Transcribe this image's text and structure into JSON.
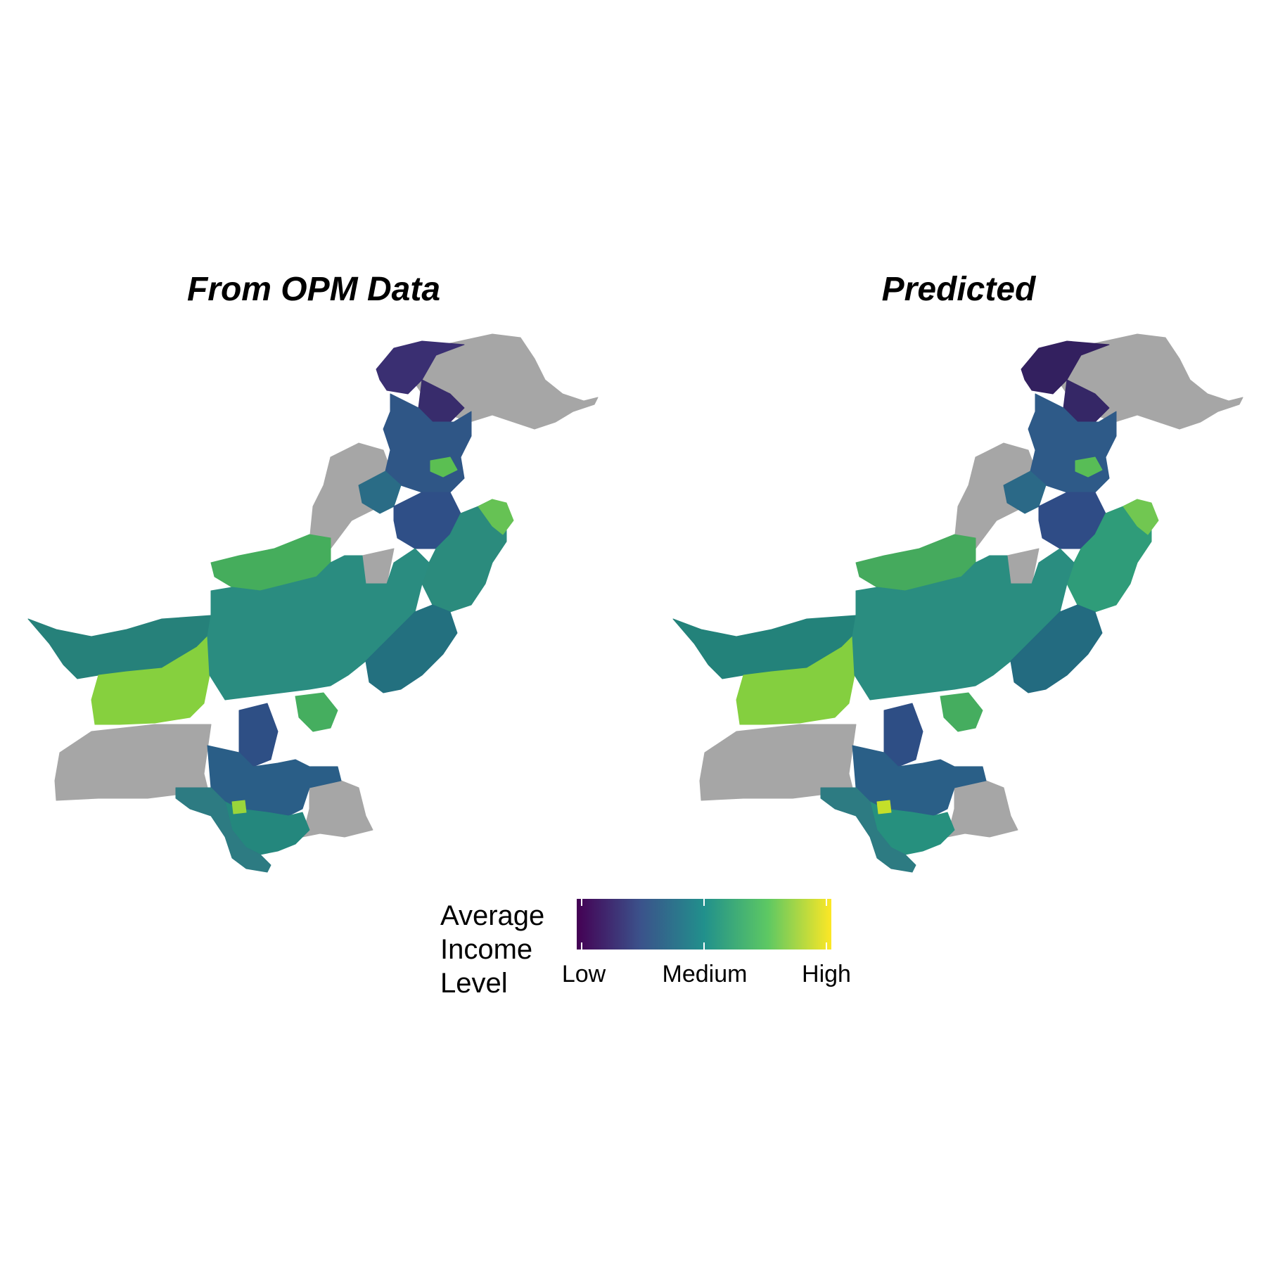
{
  "panels": [
    {
      "title": "From OPM Data"
    },
    {
      "title": "Predicted"
    }
  ],
  "legend": {
    "title_lines": [
      "Average",
      "Income",
      "Level"
    ],
    "labels": [
      "Low",
      "Medium",
      "High"
    ],
    "palette": [
      "#440154",
      "#3b528b",
      "#21908c",
      "#5dc863",
      "#fde725"
    ],
    "missing_color": "#a6a6a6"
  },
  "regions": {
    "north_tip": {
      "opm": "#3a2f72",
      "pred": "#33205f"
    },
    "north_east": {
      "opm": "#382c6c",
      "pred": "#352766"
    },
    "north_mid": {
      "opm": "#2f5686",
      "pred": "#2e5a88"
    },
    "north_spot": {
      "opm": "#5bbf52",
      "pred": "#58bd56"
    },
    "kp_band": {
      "opm": "#2a6c86",
      "pred": "#2b6987"
    },
    "punjab_north": {
      "opm": "#2f4f87",
      "pred": "#2f4c86"
    },
    "punjab_east": {
      "opm": "#2b8b7d",
      "pred": "#2f9c79"
    },
    "east_edge": {
      "opm": "#66c254",
      "pred": "#71c751"
    },
    "balochistan_north": {
      "opm": "#45ad5c",
      "pred": "#45aa5d"
    },
    "balochistan_west": {
      "opm": "#26817a",
      "pred": "#23827a"
    },
    "chagai": {
      "opm": "#86d03e",
      "pred": "#84cf3f"
    },
    "central_green": {
      "opm": "#7ccb45",
      "pred": "#7bc947"
    },
    "center_band": {
      "opm": "#2a8c80",
      "pred": "#2a8d80"
    },
    "punjab_south": {
      "opm": "#23707f",
      "pred": "#236b80"
    },
    "south_central": {
      "opm": "#2e4f85",
      "pred": "#2e4e85"
    },
    "sindh_west": {
      "opm": "#2a5e87",
      "pred": "#2a5f87"
    },
    "sindh_green": {
      "opm": "#45ae5f",
      "pred": "#45ad5f"
    },
    "sindh_south": {
      "opm": "#24877d",
      "pred": "#26907e"
    },
    "coast": {
      "opm": "#2d7b82",
      "pred": "#2d7b82"
    },
    "south_spot": {
      "opm": "#9ad53b",
      "pred": "#c4df2a"
    }
  }
}
